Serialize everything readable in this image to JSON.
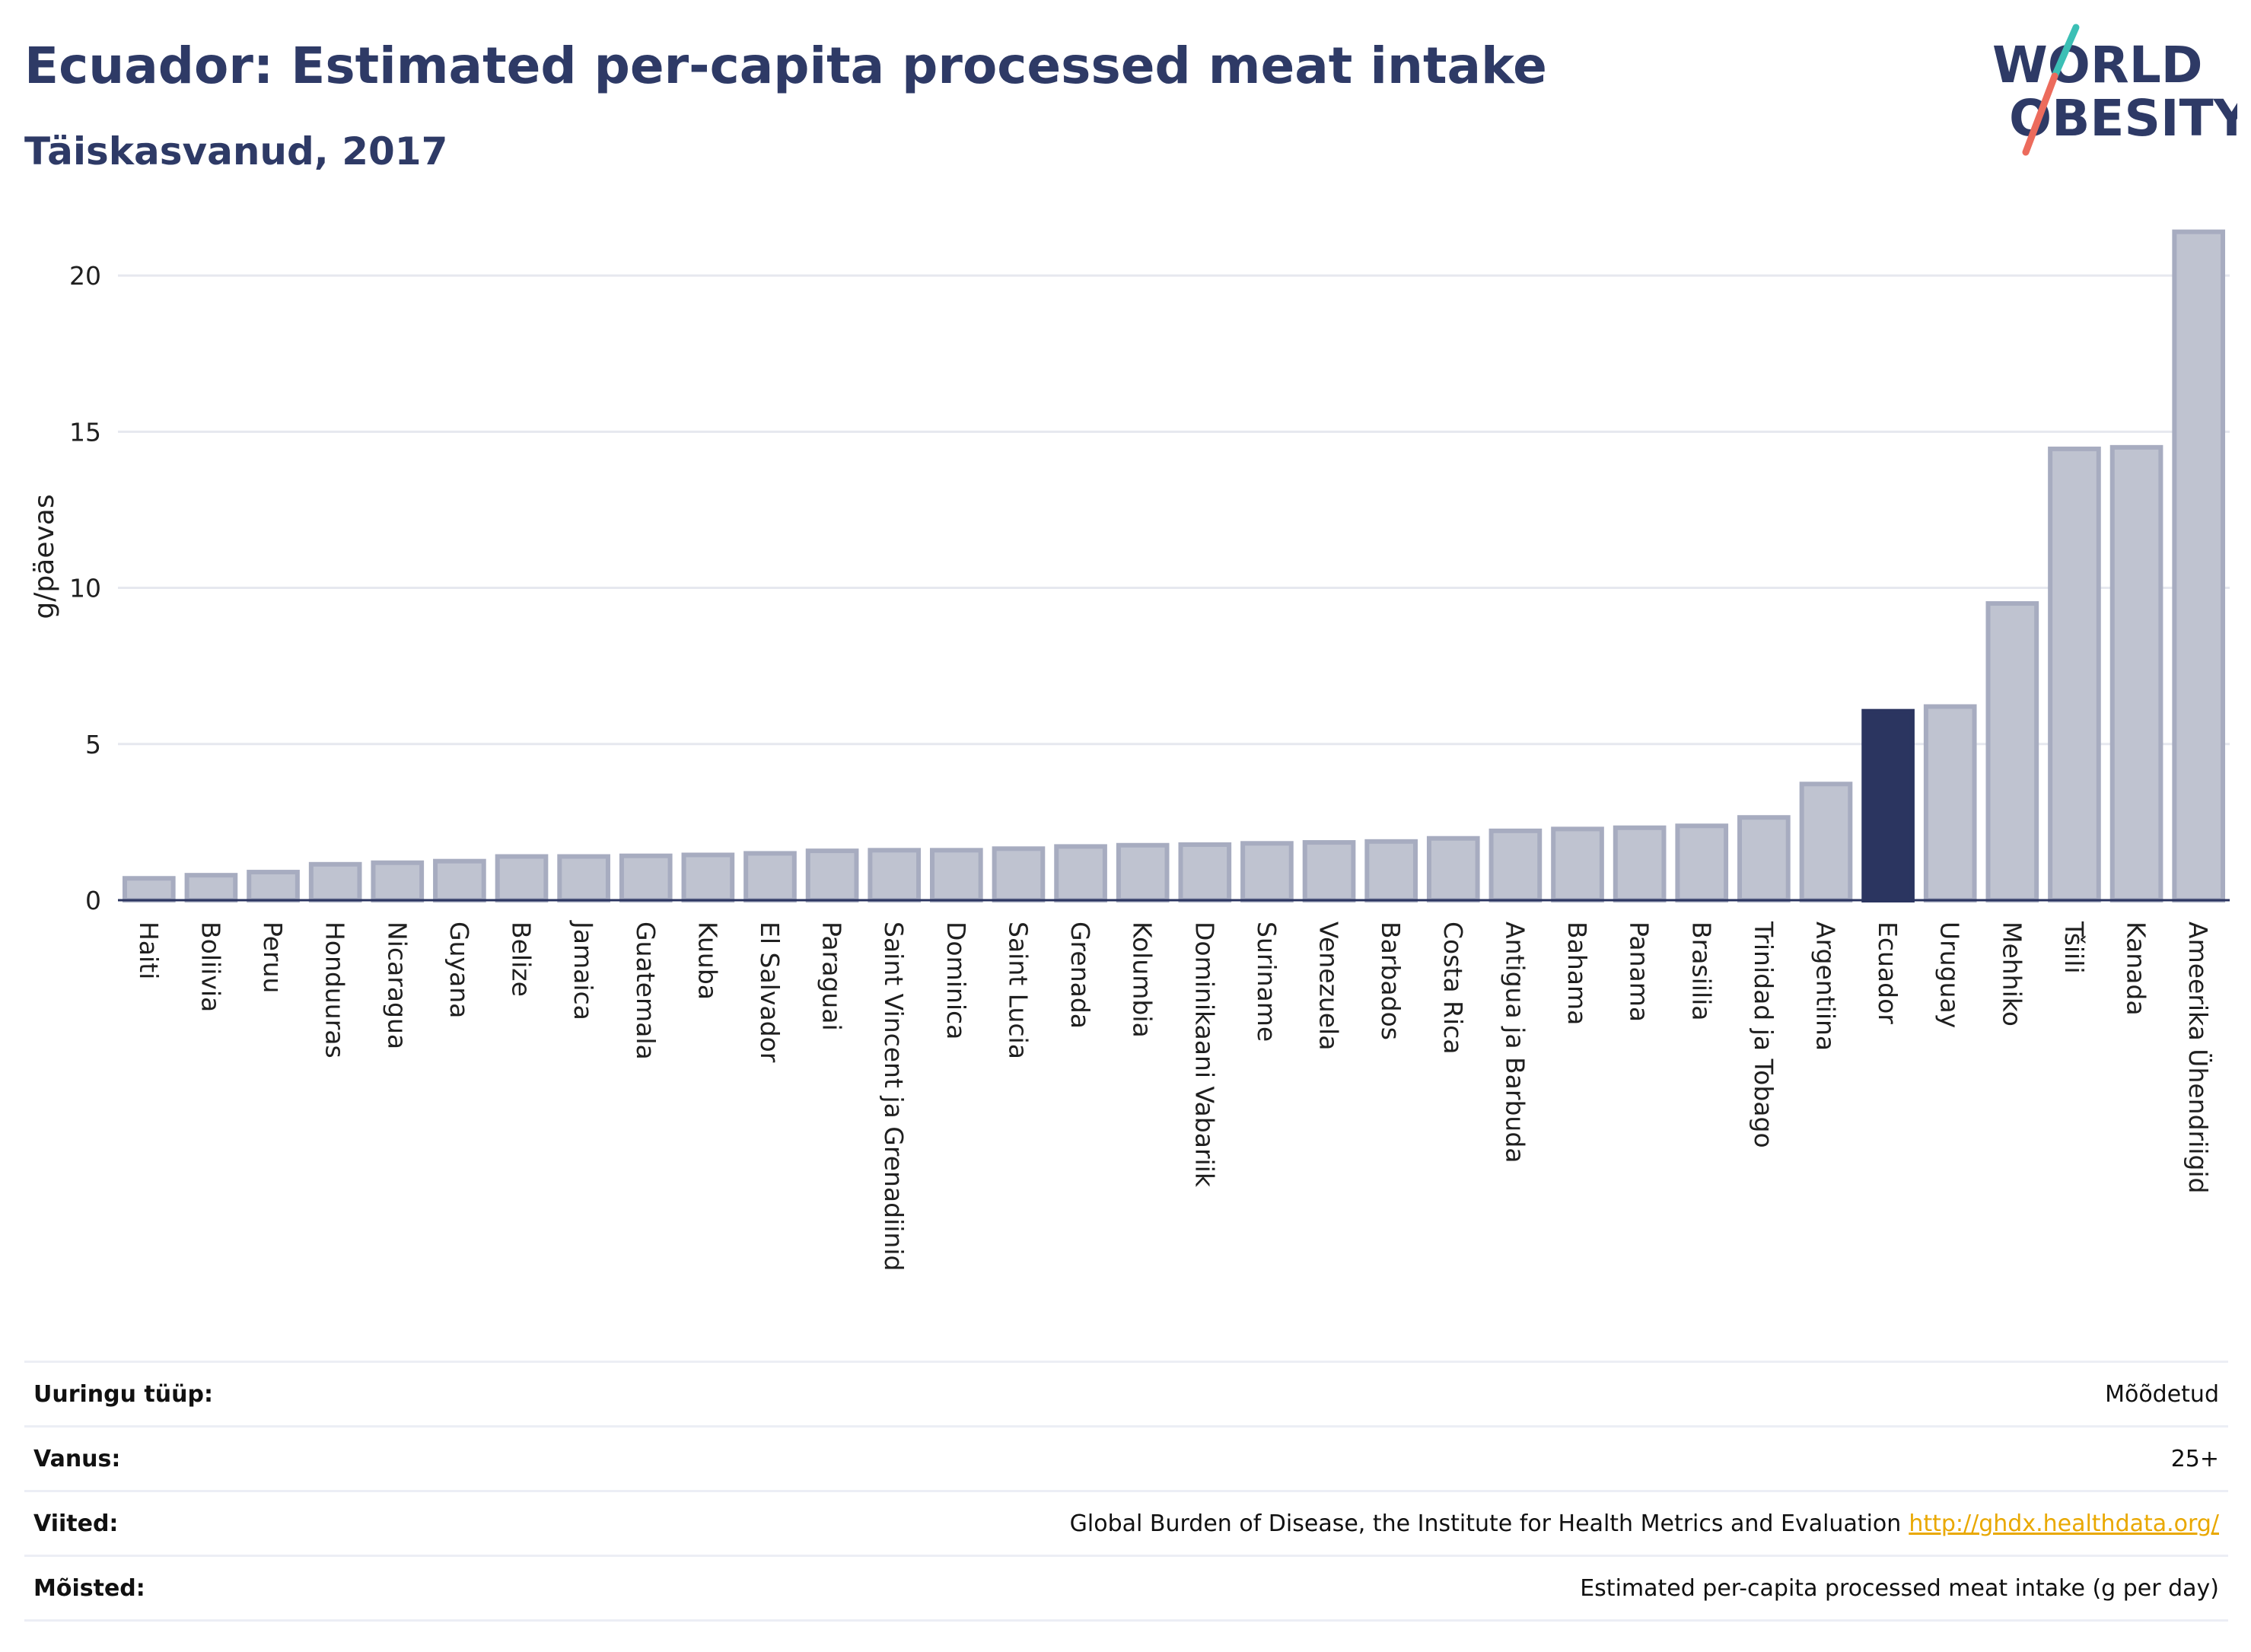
{
  "header": {
    "title": "Ecuador: Estimated per-capita processed meat intake",
    "subtitle": "Täiskasvanud, 2017"
  },
  "logo": {
    "line1": "WORLD",
    "line2": "OBESITY",
    "colors": {
      "text": "#2e3a66",
      "slash_top": "#3bbfb5",
      "slash_bottom": "#ec6b5c"
    }
  },
  "colors": {
    "bar_fill": "#bfc3d0",
    "bar_stroke": "#a7acc0",
    "highlight_fill": "#2b3560",
    "grid": "#e6e8ef",
    "axis": "#2b3560"
  },
  "chart_data": {
    "type": "bar",
    "ylabel": "g/päevas",
    "ylim": [
      0,
      22
    ],
    "yticks": [
      0,
      5,
      10,
      15,
      20
    ],
    "grid": true,
    "highlight": "Ecuador",
    "categories": [
      "Haiti",
      "Boliivia",
      "Peruu",
      "Honduuras",
      "Nicaragua",
      "Guyana",
      "Belize",
      "Jamaica",
      "Guatemala",
      "Kuuba",
      "El Salvador",
      "Paraguai",
      "Saint Vincent ja Grenadiinid",
      "Dominica",
      "Saint Lucia",
      "Grenada",
      "Kolumbia",
      "Dominikaani Vabariik",
      "Suriname",
      "Venezuela",
      "Barbados",
      "Costa Rica",
      "Antigua ja Barbuda",
      "Bahama",
      "Panama",
      "Brasiilia",
      "Trinidad ja Tobago",
      "Argentiina",
      "Ecuador",
      "Uruguay",
      "Mehhiko",
      "Tšiili",
      "Kanada",
      "Ameerika Ühendriigid"
    ],
    "values": [
      0.7,
      0.8,
      0.9,
      1.15,
      1.2,
      1.25,
      1.4,
      1.4,
      1.42,
      1.45,
      1.5,
      1.58,
      1.6,
      1.6,
      1.65,
      1.72,
      1.76,
      1.78,
      1.82,
      1.85,
      1.88,
      1.98,
      2.22,
      2.28,
      2.32,
      2.38,
      2.65,
      3.72,
      6.05,
      6.2,
      9.5,
      14.45,
      14.5,
      21.4
    ]
  },
  "meta": [
    {
      "key": "Uuringu tüüp:",
      "value": "Mõõdetud"
    },
    {
      "key": "Vanus:",
      "value": "25+"
    },
    {
      "key": "Viited:",
      "value": "Global Burden of Disease, the Institute for Health Metrics and Evaluation",
      "link": "http://ghdx.healthdata.org/"
    },
    {
      "key": "Mõisted:",
      "value": "Estimated per-capita processed meat intake (g per day)"
    }
  ]
}
